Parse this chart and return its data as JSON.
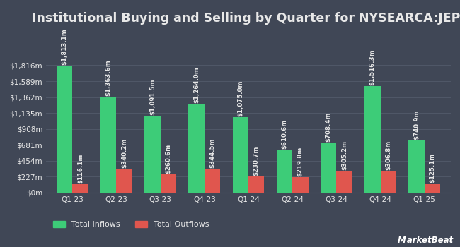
{
  "title": "Institutional Buying and Selling by Quarter for NYSEARCA:JEPI",
  "quarters": [
    "Q1-23",
    "Q2-23",
    "Q3-23",
    "Q4-23",
    "Q1-24",
    "Q2-24",
    "Q3-24",
    "Q4-24",
    "Q1-25"
  ],
  "inflows": [
    1813.1,
    1363.6,
    1091.5,
    1264.0,
    1075.0,
    610.6,
    708.4,
    1516.3,
    740.9
  ],
  "outflows": [
    116.1,
    340.2,
    260.6,
    344.5,
    230.7,
    219.8,
    305.2,
    306.8,
    125.1
  ],
  "inflow_labels": [
    "$1,813.1m",
    "$1,363.6m",
    "$1,091.5m",
    "$1,264.0m",
    "$1,075.0m",
    "$610.6m",
    "$708.4m",
    "$1,516.3m",
    "$740.9m"
  ],
  "outflow_labels": [
    "$116.1m",
    "$340.2m",
    "$260.6m",
    "$344.5m",
    "$230.7m",
    "$219.8m",
    "$305.2m",
    "$306.8m",
    "$125.1m"
  ],
  "yticks": [
    0,
    227,
    454,
    681,
    908,
    1135,
    1362,
    1589,
    1816
  ],
  "ytick_labels": [
    "$0m",
    "$227m",
    "$454m",
    "$681m",
    "$908m",
    "$1,135m",
    "$1,362m",
    "$1,589m",
    "$1,816m"
  ],
  "ymax": 2324,
  "background_color": "#404756",
  "bar_color_inflow": "#3dcc78",
  "bar_color_outflow": "#e0564e",
  "text_color": "#e8e8e8",
  "grid_color": "#535b6b",
  "title_fontsize": 12.5,
  "label_fontsize": 6.2,
  "tick_fontsize": 7.5,
  "legend_fontsize": 8,
  "bar_width": 0.36
}
